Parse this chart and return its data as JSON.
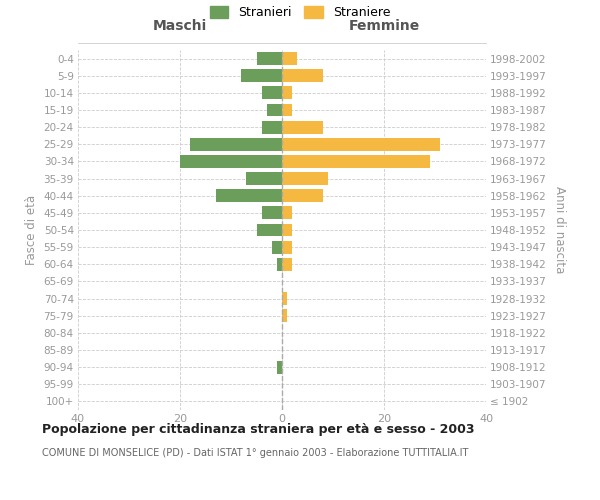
{
  "age_groups": [
    "100+",
    "95-99",
    "90-94",
    "85-89",
    "80-84",
    "75-79",
    "70-74",
    "65-69",
    "60-64",
    "55-59",
    "50-54",
    "45-49",
    "40-44",
    "35-39",
    "30-34",
    "25-29",
    "20-24",
    "15-19",
    "10-14",
    "5-9",
    "0-4"
  ],
  "birth_years": [
    "≤ 1902",
    "1903-1907",
    "1908-1912",
    "1913-1917",
    "1918-1922",
    "1923-1927",
    "1928-1932",
    "1933-1937",
    "1938-1942",
    "1943-1947",
    "1948-1952",
    "1953-1957",
    "1958-1962",
    "1963-1967",
    "1968-1972",
    "1973-1977",
    "1978-1982",
    "1983-1987",
    "1988-1992",
    "1993-1997",
    "1998-2002"
  ],
  "maschi": [
    0,
    0,
    1,
    0,
    0,
    0,
    0,
    0,
    1,
    2,
    5,
    4,
    13,
    7,
    20,
    18,
    4,
    3,
    4,
    8,
    5
  ],
  "femmine": [
    0,
    0,
    0,
    0,
    0,
    1,
    1,
    0,
    2,
    2,
    2,
    2,
    8,
    9,
    29,
    31,
    8,
    2,
    2,
    8,
    3
  ],
  "male_color": "#6a9e5a",
  "female_color": "#f5b942",
  "bar_height": 0.75,
  "xlim": [
    -40,
    40
  ],
  "xlabel_left": "Maschi",
  "xlabel_right": "Femmine",
  "ylabel_left": "Fasce di età",
  "ylabel_right": "Anni di nascita",
  "legend_male": "Stranieri",
  "legend_female": "Straniere",
  "title": "Popolazione per cittadinanza straniera per età e sesso - 2003",
  "subtitle": "COMUNE DI MONSELICE (PD) - Dati ISTAT 1° gennaio 2003 - Elaborazione TUTTITALIA.IT",
  "xticks": [
    -40,
    -20,
    0,
    20,
    40
  ],
  "xticklabels": [
    "40",
    "20",
    "0",
    "20",
    "40"
  ],
  "grid_color": "#cccccc",
  "background_color": "#ffffff",
  "text_color": "#999999",
  "header_color": "#555555"
}
